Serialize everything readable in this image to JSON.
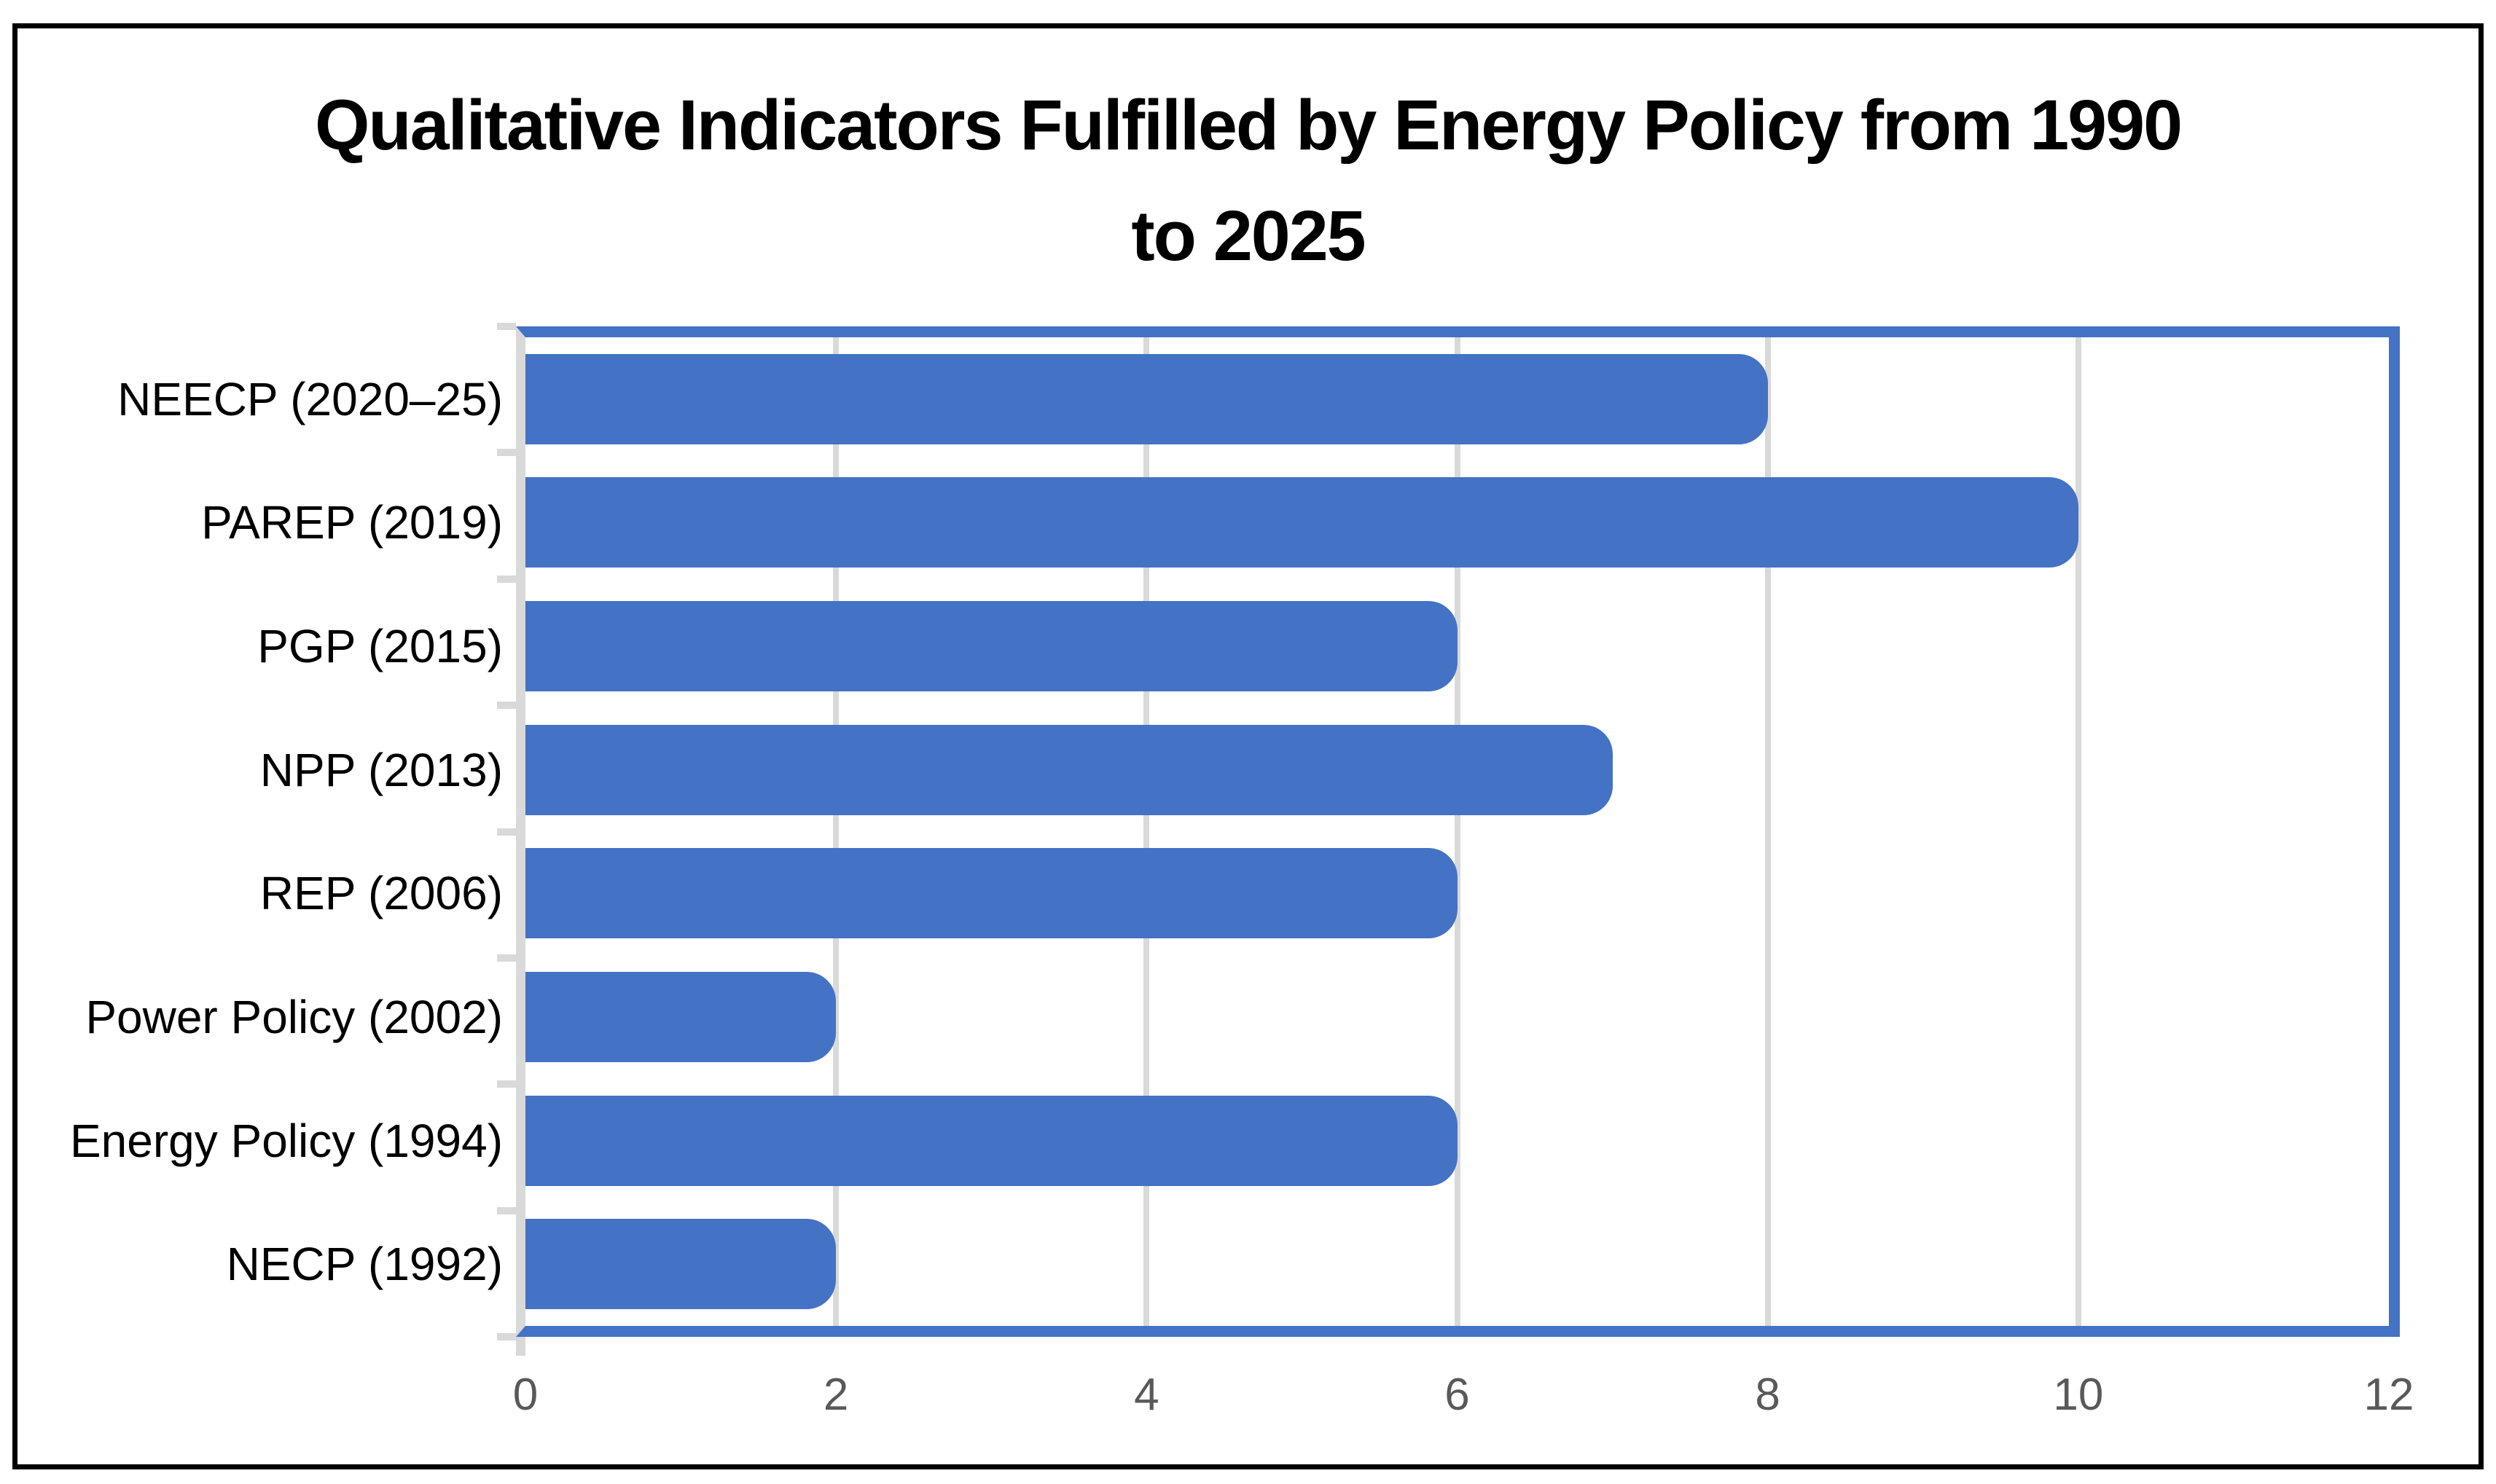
{
  "title": {
    "line1": "Qualitative Indicators Fulfilled by Energy Policy from 1990",
    "line2": "to 2025"
  },
  "chart_data": {
    "type": "bar",
    "orientation": "horizontal",
    "title": "Qualitative Indicators Fulfilled by Energy Policy from 1990 to 2025",
    "categories": [
      "NEECP (2020–25)",
      "PAREP (2019)",
      "PGP (2015)",
      "NPP (2013)",
      "REP (2006)",
      "Power Policy (2002)",
      "Energy Policy (1994)",
      "NECP (1992)"
    ],
    "values": [
      8,
      10,
      6,
      7,
      6,
      2,
      6,
      2
    ],
    "xlabel": "",
    "ylabel": "",
    "xlim": [
      0,
      12
    ],
    "xticks": [
      0,
      2,
      4,
      6,
      8,
      10,
      12
    ],
    "gridline_values": [
      2,
      4,
      6,
      8,
      10
    ],
    "grid": true,
    "legend": false,
    "colors": {
      "bar": "#4472C4",
      "plot_border": "#4472C4",
      "gridline": "#D9D9D9",
      "axis_line": "#D9D9D9",
      "tick_label": "#595959",
      "category_label": "#000000",
      "title": "#000000",
      "frame_border": "#000000",
      "background": "#FFFFFF"
    }
  }
}
